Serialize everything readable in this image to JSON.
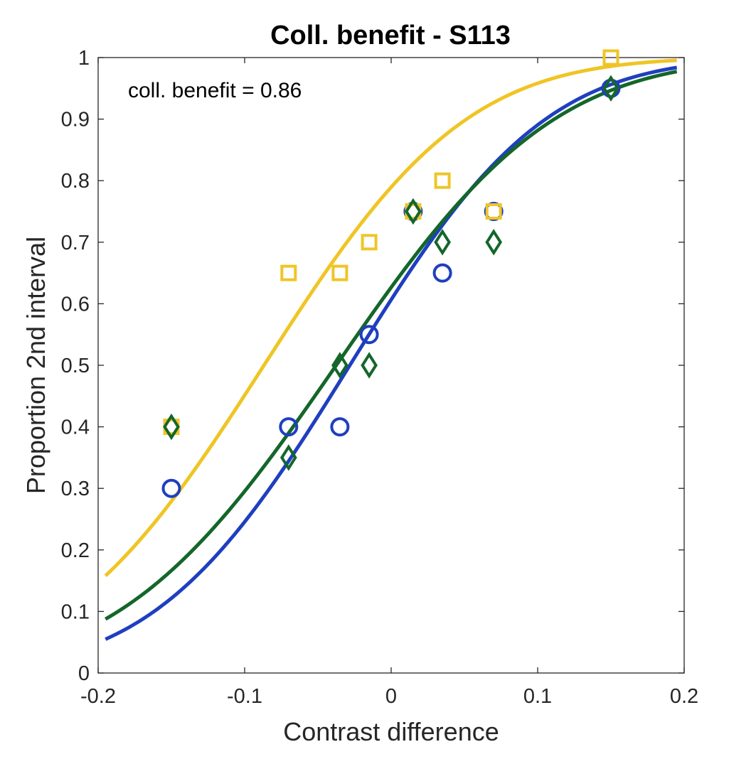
{
  "chart_data": {
    "type": "scatter",
    "title": "Coll. benefit - S113",
    "xlabel": "Contrast difference",
    "ylabel": "Proportion 2nd interval",
    "xlim": [
      -0.2,
      0.2
    ],
    "ylim": [
      0,
      1
    ],
    "xticks": [
      -0.2,
      -0.1,
      0,
      0.1,
      0.2
    ],
    "xtick_labels": [
      "-0.2",
      "-0.1",
      "0",
      "0.1",
      "0.2"
    ],
    "yticks": [
      0,
      0.1,
      0.2,
      0.3,
      0.4,
      0.5,
      0.6,
      0.7,
      0.8,
      0.9,
      1
    ],
    "ytick_labels": [
      "0",
      "0.1",
      "0.2",
      "0.3",
      "0.4",
      "0.5",
      "0.6",
      "0.7",
      "0.8",
      "0.9",
      "1"
    ],
    "grid": false,
    "annotation": "coll. benefit = 0.86",
    "series": [
      {
        "name": "blue",
        "color": "#1f3fbf",
        "marker": "circle",
        "x": [
          -0.15,
          -0.07,
          -0.035,
          -0.015,
          0.015,
          0.035,
          0.07,
          0.15
        ],
        "y": [
          0.3,
          0.4,
          0.4,
          0.55,
          0.75,
          0.65,
          0.75,
          0.95
        ],
        "fit": {
          "mu": -0.0282,
          "sigma": 0.1043,
          "x_range": [
            -0.195,
            0.195
          ]
        }
      },
      {
        "name": "yellow",
        "color": "#efc526",
        "marker": "square",
        "x": [
          -0.15,
          -0.07,
          -0.035,
          -0.015,
          0.015,
          0.035,
          0.07,
          0.15
        ],
        "y": [
          0.4,
          0.65,
          0.65,
          0.7,
          0.75,
          0.8,
          0.75,
          1.0
        ],
        "fit": {
          "mu": -0.0868,
          "sigma": 0.1079,
          "x_range": [
            -0.195,
            0.195
          ]
        }
      },
      {
        "name": "green",
        "color": "#14662a",
        "marker": "diamond",
        "x": [
          -0.15,
          -0.07,
          -0.035,
          -0.015,
          0.015,
          0.035,
          0.07,
          0.15
        ],
        "y": [
          0.4,
          0.35,
          0.5,
          0.5,
          0.75,
          0.7,
          0.7,
          0.95
        ],
        "fit": {
          "mu": -0.0375,
          "sigma": 0.1162,
          "x_range": [
            -0.195,
            0.195
          ]
        }
      }
    ]
  }
}
